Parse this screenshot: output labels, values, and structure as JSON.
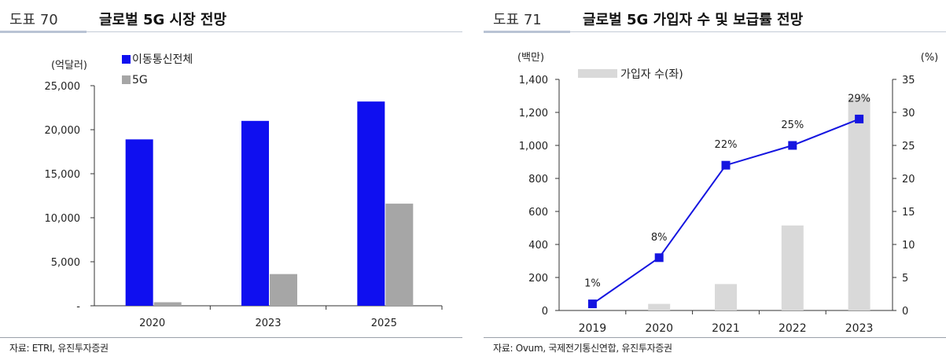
{
  "left": {
    "label": "도표 70",
    "title": "글로벌 5G 시장 전망",
    "source": "자료: ETRI, 유진투자증권",
    "chart_data": {
      "type": "bar",
      "categories": [
        "2020",
        "2023",
        "2025"
      ],
      "series": [
        {
          "name": "이동통신전체",
          "values": [
            18900,
            21000,
            23200
          ],
          "color": "#0f0ff0"
        },
        {
          "name": "5G",
          "values": [
            400,
            3600,
            11600
          ],
          "color": "#a6a6a6"
        }
      ],
      "ylabel": "(억달러)",
      "ylim": [
        0,
        25000
      ],
      "yticks": [
        "-",
        "5,000",
        "10,000",
        "15,000",
        "20,000",
        "25,000"
      ],
      "legend": "top-left",
      "grid": false
    }
  },
  "right": {
    "label": "도표 71",
    "title": "글로벌 5G 가입자 수 및 보급률 전망",
    "source": "자료: Ovum, 국제전기통신연합, 유진투자증권",
    "chart_data": {
      "type": "bar+line",
      "categories": [
        "2019",
        "2020",
        "2021",
        "2022",
        "2023"
      ],
      "series": [
        {
          "name": "가입자 수(좌)",
          "type": "bar",
          "axis": "left",
          "values": [
            0,
            40,
            160,
            515,
            1290
          ],
          "color": "#d9d9d9"
        },
        {
          "type": "line",
          "axis": "right",
          "values": [
            1,
            8,
            22,
            25,
            29
          ],
          "labels": [
            "1%",
            "8%",
            "22%",
            "25%",
            "29%"
          ],
          "color": "#1515e0"
        }
      ],
      "ylabel_left": "(백만)",
      "ylabel_right": "(%)",
      "ylim_left": [
        0,
        1400
      ],
      "ylim_right": [
        0,
        35
      ],
      "yticks_left": [
        "0",
        "200",
        "400",
        "600",
        "800",
        "1,000",
        "1,200",
        "1,400"
      ],
      "yticks_right": [
        "0",
        "5",
        "10",
        "15",
        "20",
        "25",
        "30",
        "35"
      ],
      "legend": "top-left",
      "grid": false
    }
  }
}
